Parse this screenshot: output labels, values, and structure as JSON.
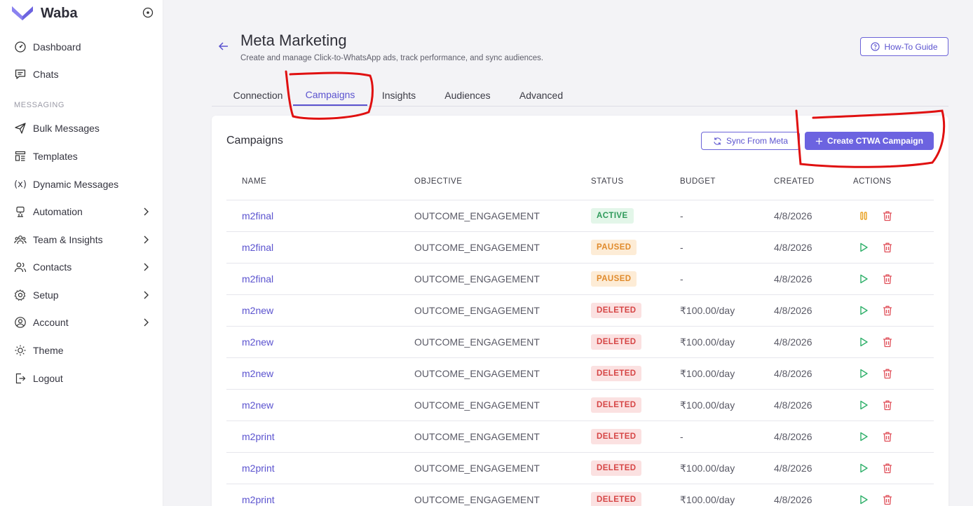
{
  "brand": {
    "name": "Waba"
  },
  "sidebar": {
    "section_messaging": "MESSAGING",
    "items": [
      {
        "label": "Dashboard",
        "icon": "dashboard-icon"
      },
      {
        "label": "Chats",
        "icon": "chat-icon"
      },
      {
        "label": "Bulk Messages",
        "icon": "send-icon"
      },
      {
        "label": "Templates",
        "icon": "template-icon"
      },
      {
        "label": "Dynamic Messages",
        "icon": "variable-icon",
        "icon_text": "(x)"
      },
      {
        "label": "Automation",
        "icon": "automation-icon",
        "has_submenu": true
      },
      {
        "label": "Team & Insights",
        "icon": "team-icon",
        "has_submenu": true
      },
      {
        "label": "Contacts",
        "icon": "contacts-icon",
        "has_submenu": true
      },
      {
        "label": "Setup",
        "icon": "gear-icon",
        "has_submenu": true
      },
      {
        "label": "Account",
        "icon": "account-icon",
        "has_submenu": true
      },
      {
        "label": "Theme",
        "icon": "sun-icon"
      },
      {
        "label": "Logout",
        "icon": "logout-icon"
      }
    ]
  },
  "header": {
    "title": "Meta Marketing",
    "subtitle": "Create and manage Click-to-WhatsApp ads, track performance, and sync audiences.",
    "guide_label": "How-To Guide"
  },
  "tabs": [
    {
      "label": "Connection",
      "active": false
    },
    {
      "label": "Campaigns",
      "active": true
    },
    {
      "label": "Insights",
      "active": false
    },
    {
      "label": "Audiences",
      "active": false
    },
    {
      "label": "Advanced",
      "active": false
    }
  ],
  "campaigns": {
    "title": "Campaigns",
    "sync_label": "Sync From Meta",
    "create_label": "Create CTWA Campaign",
    "columns": [
      "NAME",
      "OBJECTIVE",
      "STATUS",
      "BUDGET",
      "CREATED",
      "ACTIONS"
    ],
    "rows": [
      {
        "name": "m2final",
        "objective": "OUTCOME_ENGAGEMENT",
        "status": "ACTIVE",
        "budget": "-",
        "created": "4/8/2026"
      },
      {
        "name": "m2final",
        "objective": "OUTCOME_ENGAGEMENT",
        "status": "PAUSED",
        "budget": "-",
        "created": "4/8/2026"
      },
      {
        "name": "m2final",
        "objective": "OUTCOME_ENGAGEMENT",
        "status": "PAUSED",
        "budget": "-",
        "created": "4/8/2026"
      },
      {
        "name": "m2new",
        "objective": "OUTCOME_ENGAGEMENT",
        "status": "DELETED",
        "budget": "₹100.00/day",
        "created": "4/8/2026"
      },
      {
        "name": "m2new",
        "objective": "OUTCOME_ENGAGEMENT",
        "status": "DELETED",
        "budget": "₹100.00/day",
        "created": "4/8/2026"
      },
      {
        "name": "m2new",
        "objective": "OUTCOME_ENGAGEMENT",
        "status": "DELETED",
        "budget": "₹100.00/day",
        "created": "4/8/2026"
      },
      {
        "name": "m2new",
        "objective": "OUTCOME_ENGAGEMENT",
        "status": "DELETED",
        "budget": "₹100.00/day",
        "created": "4/8/2026"
      },
      {
        "name": "m2print",
        "objective": "OUTCOME_ENGAGEMENT",
        "status": "DELETED",
        "budget": "-",
        "created": "4/8/2026"
      },
      {
        "name": "m2print",
        "objective": "OUTCOME_ENGAGEMENT",
        "status": "DELETED",
        "budget": "₹100.00/day",
        "created": "4/8/2026"
      },
      {
        "name": "m2print",
        "objective": "OUTCOME_ENGAGEMENT",
        "status": "DELETED",
        "budget": "₹100.00/day",
        "created": "4/8/2026"
      }
    ]
  },
  "colors": {
    "accent": "#6c63e0",
    "accent_text": "#5b53cf",
    "active_bg": "#e3f6e9",
    "active_fg": "#2e9a5a",
    "paused_bg": "#fdecd6",
    "paused_fg": "#e08a2b",
    "deleted_bg": "#fbe1e1",
    "deleted_fg": "#d64545",
    "annotation": "#e01010"
  }
}
